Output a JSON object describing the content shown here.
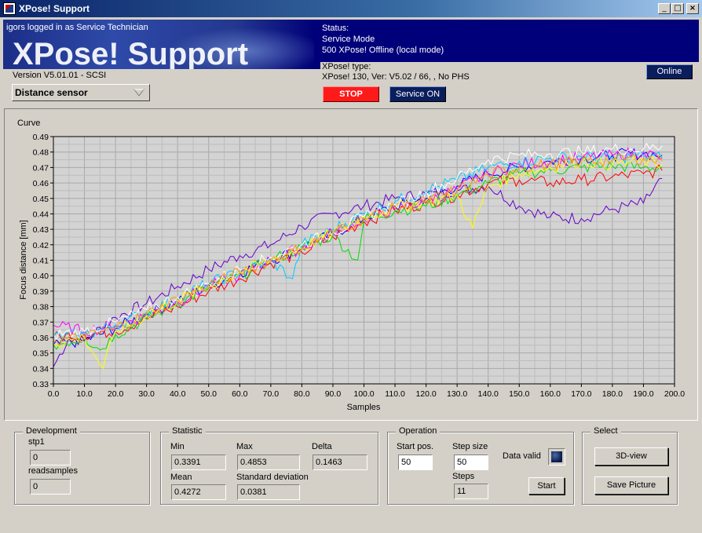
{
  "window": {
    "title": "XPose! Support",
    "icon": "app-icon",
    "controls": {
      "minimize": "_",
      "maximize": "□",
      "close": "×"
    }
  },
  "header": {
    "user_line": "igors logged in as Service Technician",
    "brand": "XPose! Support",
    "version": "Version V5.01.01 - SCSI",
    "status_label": "Status:",
    "status_mode": "Service Mode",
    "status_conn": "500 XPose! Offline (local mode)",
    "type_label": "XPose! type:",
    "type_value": "XPose! 130,  Ver: V5.02 / 66, , No PHS",
    "online_button": "Online"
  },
  "toolbar": {
    "sensor_select": "Distance sensor",
    "stop_button": "STOP",
    "service_button": "Service ON"
  },
  "chart": {
    "title": "Curve"
  },
  "chart_data": {
    "type": "line",
    "xlabel": "Samples",
    "ylabel": "Focus distance [mm]",
    "xlim": [
      0,
      200
    ],
    "ylim": [
      0.33,
      0.49
    ],
    "xticks": [
      "0.0",
      "10.0",
      "20.0",
      "30.0",
      "40.0",
      "50.0",
      "60.0",
      "70.0",
      "80.0",
      "90.0",
      "100.0",
      "110.0",
      "120.0",
      "130.0",
      "140.0",
      "150.0",
      "160.0",
      "170.0",
      "180.0",
      "190.0",
      "200.0"
    ],
    "yticks": [
      "0.33",
      "0.34",
      "0.35",
      "0.36",
      "0.37",
      "0.38",
      "0.39",
      "0.40",
      "0.41",
      "0.42",
      "0.43",
      "0.44",
      "0.45",
      "0.46",
      "0.47",
      "0.48",
      "0.49"
    ],
    "grid": true,
    "series": [
      {
        "color": "#6600cc",
        "x": [
          0,
          5,
          10,
          20,
          30,
          40,
          50,
          60,
          70,
          80,
          90,
          100,
          110,
          120,
          130,
          140,
          150,
          160,
          170,
          180,
          190,
          196
        ],
        "values": [
          0.341,
          0.36,
          0.358,
          0.373,
          0.382,
          0.393,
          0.404,
          0.413,
          0.42,
          0.432,
          0.44,
          0.445,
          0.45,
          0.453,
          0.455,
          0.458,
          0.445,
          0.438,
          0.437,
          0.443,
          0.447,
          0.463
        ]
      },
      {
        "color": "#0000ff",
        "x": [
          0,
          10,
          20,
          30,
          40,
          50,
          60,
          70,
          80,
          90,
          100,
          110,
          120,
          130,
          140,
          150,
          160,
          170,
          180,
          190,
          196
        ],
        "values": [
          0.355,
          0.358,
          0.366,
          0.375,
          0.384,
          0.393,
          0.402,
          0.41,
          0.418,
          0.427,
          0.437,
          0.445,
          0.45,
          0.458,
          0.466,
          0.47,
          0.474,
          0.476,
          0.478,
          0.479,
          0.478
        ]
      },
      {
        "color": "#ff0000",
        "x": [
          0,
          10,
          20,
          30,
          40,
          50,
          60,
          70,
          80,
          90,
          100,
          110,
          120,
          130,
          140,
          150,
          160,
          170,
          180,
          190,
          196
        ],
        "values": [
          0.36,
          0.362,
          0.364,
          0.372,
          0.38,
          0.39,
          0.398,
          0.408,
          0.415,
          0.425,
          0.435,
          0.442,
          0.447,
          0.452,
          0.46,
          0.462,
          0.46,
          0.462,
          0.464,
          0.466,
          0.468
        ]
      },
      {
        "color": "#00dd00",
        "x": [
          0,
          10,
          15,
          20,
          30,
          40,
          50,
          60,
          70,
          80,
          90,
          98,
          100,
          110,
          120,
          130,
          140,
          150,
          160,
          170,
          180,
          190,
          196
        ],
        "values": [
          0.355,
          0.36,
          0.352,
          0.362,
          0.372,
          0.382,
          0.392,
          0.4,
          0.41,
          0.418,
          0.426,
          0.41,
          0.436,
          0.442,
          0.445,
          0.452,
          0.46,
          0.466,
          0.468,
          0.47,
          0.471,
          0.47,
          0.47
        ]
      },
      {
        "color": "#ff00ff",
        "x": [
          0,
          10,
          20,
          30,
          40,
          50,
          60,
          70,
          80,
          90,
          100,
          110,
          120,
          130,
          140,
          150,
          160,
          170,
          180,
          190,
          196
        ],
        "values": [
          0.368,
          0.364,
          0.368,
          0.374,
          0.383,
          0.393,
          0.4,
          0.41,
          0.418,
          0.428,
          0.437,
          0.443,
          0.448,
          0.456,
          0.466,
          0.472,
          0.474,
          0.476,
          0.478,
          0.48,
          0.476
        ]
      },
      {
        "color": "#00ccff",
        "x": [
          0,
          10,
          20,
          30,
          40,
          50,
          60,
          70,
          77,
          80,
          90,
          100,
          110,
          120,
          130,
          140,
          150,
          160,
          170,
          180,
          190,
          196
        ],
        "values": [
          0.36,
          0.362,
          0.368,
          0.376,
          0.386,
          0.395,
          0.402,
          0.41,
          0.398,
          0.42,
          0.43,
          0.44,
          0.448,
          0.455,
          0.462,
          0.47,
          0.474,
          0.476,
          0.477,
          0.476,
          0.478,
          0.476
        ]
      },
      {
        "color": "#ffffff",
        "x": [
          0,
          10,
          20,
          30,
          40,
          50,
          60,
          70,
          80,
          90,
          100,
          110,
          120,
          130,
          140,
          150,
          160,
          170,
          180,
          190,
          196
        ],
        "values": [
          0.362,
          0.364,
          0.37,
          0.378,
          0.386,
          0.395,
          0.404,
          0.412,
          0.42,
          0.428,
          0.438,
          0.446,
          0.454,
          0.463,
          0.475,
          0.478,
          0.479,
          0.48,
          0.482,
          0.482,
          0.484
        ]
      },
      {
        "color": "#ffff00",
        "x": [
          0,
          10,
          16,
          20,
          30,
          40,
          50,
          60,
          70,
          80,
          90,
          100,
          110,
          120,
          130,
          135,
          140,
          150,
          160,
          170,
          180,
          190,
          196
        ],
        "values": [
          0.356,
          0.36,
          0.34,
          0.364,
          0.374,
          0.384,
          0.393,
          0.402,
          0.41,
          0.418,
          0.428,
          0.438,
          0.444,
          0.448,
          0.452,
          0.431,
          0.458,
          0.466,
          0.47,
          0.474,
          0.472,
          0.474,
          0.472
        ]
      },
      {
        "color": "#ff9900",
        "x": [
          0,
          10,
          20,
          30,
          40,
          50,
          60,
          70,
          80,
          90,
          100,
          110,
          120,
          130,
          140,
          150,
          160,
          170,
          180,
          190,
          196
        ],
        "values": [
          0.358,
          0.36,
          0.366,
          0.375,
          0.385,
          0.394,
          0.402,
          0.41,
          0.418,
          0.428,
          0.437,
          0.444,
          0.448,
          0.455,
          0.465,
          0.47,
          0.472,
          0.474,
          0.475,
          0.476,
          0.474
        ]
      }
    ]
  },
  "development": {
    "title": "Development",
    "stp1_label": "stp1",
    "stp1_value": "0",
    "readsamples_label": "readsamples",
    "readsamples_value": "0"
  },
  "statistic": {
    "title": "Statistic",
    "min_label": "Min",
    "min_value": "0.3391",
    "max_label": "Max",
    "max_value": "0.4853",
    "delta_label": "Delta",
    "delta_value": "0.1463",
    "mean_label": "Mean",
    "mean_value": "0.4272",
    "std_label": "Standard deviation",
    "std_value": "0.0381"
  },
  "operation": {
    "title": "Operation",
    "start_pos_label": "Start pos.",
    "start_pos_value": "50",
    "step_size_label": "Step size",
    "step_size_value": "50",
    "steps_label": "Steps",
    "steps_value": "11",
    "data_valid_label": "Data valid",
    "start_button": "Start"
  },
  "select": {
    "title": "Select",
    "view3d_button": "3D-view",
    "save_button": "Save Picture"
  }
}
